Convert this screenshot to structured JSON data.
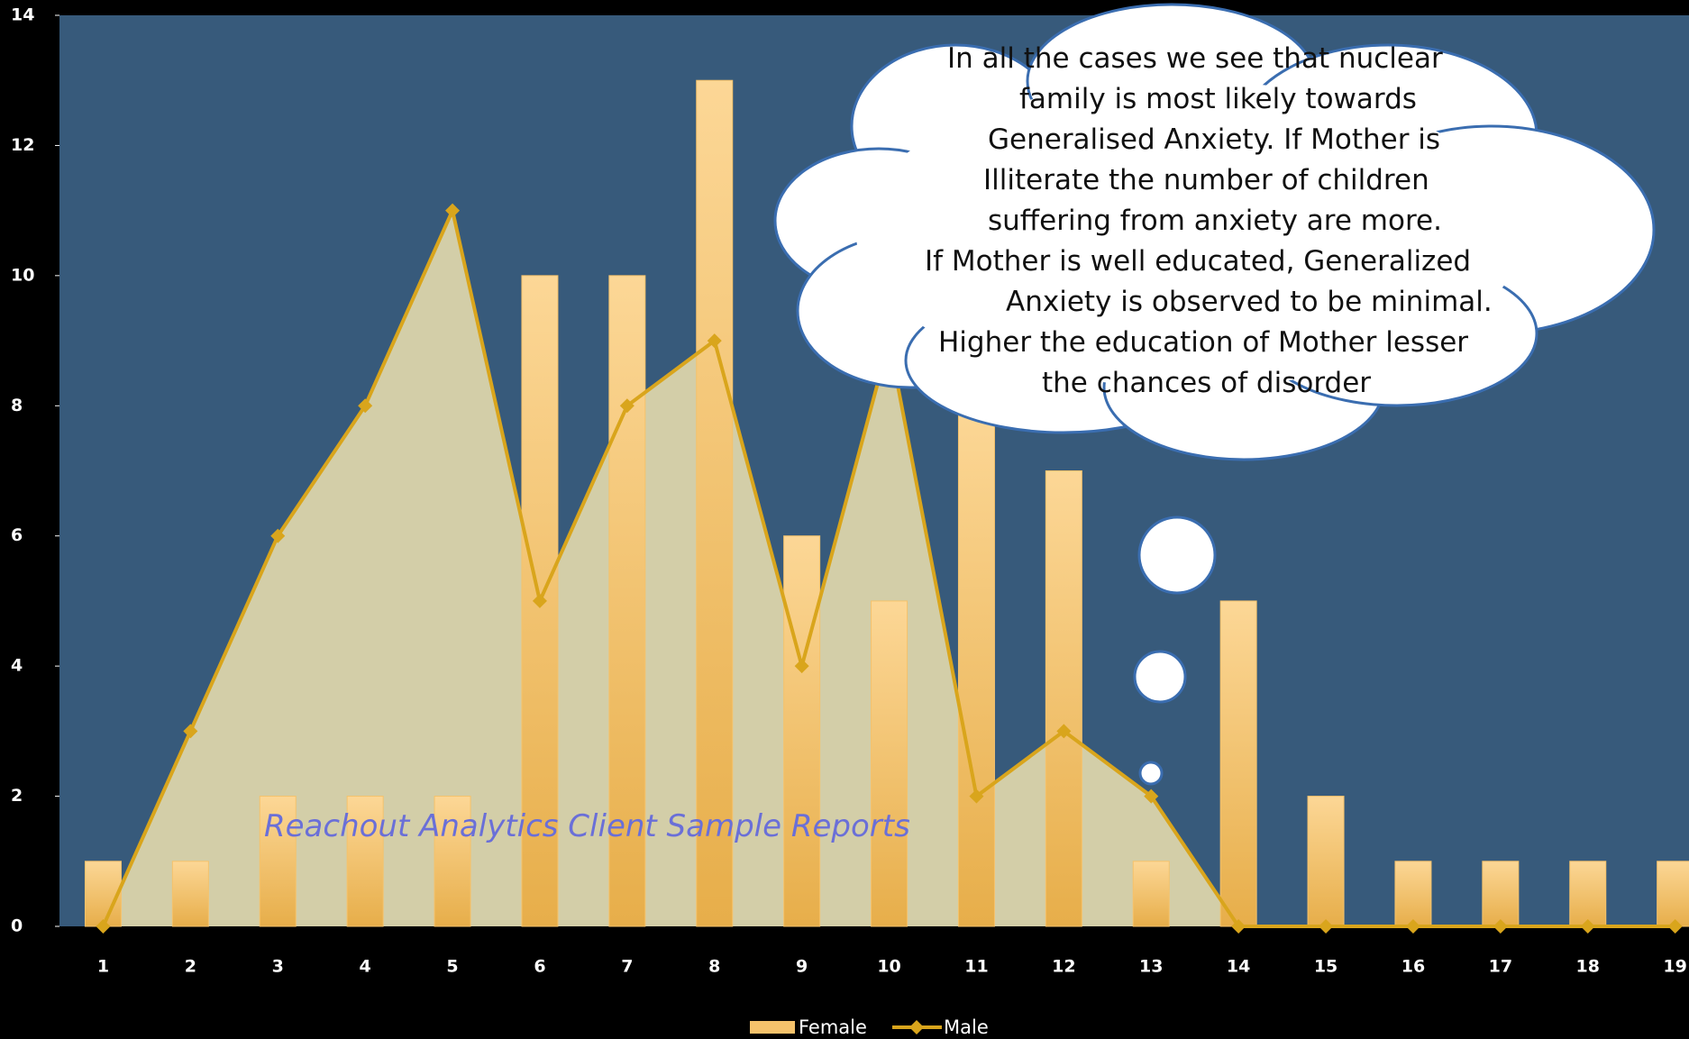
{
  "chart_data": {
    "type": "bar",
    "categories": [
      "1",
      "2",
      "3",
      "4",
      "5",
      "6",
      "7",
      "8",
      "9",
      "10",
      "11",
      "12",
      "13",
      "14",
      "15",
      "16",
      "17",
      "18",
      "19"
    ],
    "series": [
      {
        "name": "Female",
        "type": "bar",
        "color": "#f5c26b",
        "values": [
          1,
          1,
          2,
          2,
          2,
          10,
          10,
          13,
          6,
          5,
          8,
          7,
          1,
          5,
          2,
          1,
          1,
          1,
          1
        ]
      },
      {
        "name": "Male",
        "type": "line",
        "color": "#d9a51c",
        "area_color": "#efe3b0",
        "values": [
          0,
          3,
          6,
          8,
          11,
          5,
          8,
          9,
          4,
          9,
          2,
          3,
          2,
          0,
          0,
          0,
          0,
          0,
          0
        ]
      }
    ],
    "ylim": [
      0,
      14
    ],
    "yticks": [
      0,
      2,
      4,
      6,
      8,
      10,
      12,
      14
    ],
    "annotation": [
      "In all the cases we see that nuclear",
      "family is most likely towards",
      "Generalised Anxiety. If Mother is",
      "Illiterate the number of children",
      "suffering from anxiety are more.",
      "If Mother is well educated, Generalized",
      "Anxiety is observed to be minimal.",
      "Higher the education of Mother lesser",
      "the chances of disorder"
    ],
    "watermark": "Reachout Analytics Client Sample Reports",
    "legend": "bottom"
  }
}
